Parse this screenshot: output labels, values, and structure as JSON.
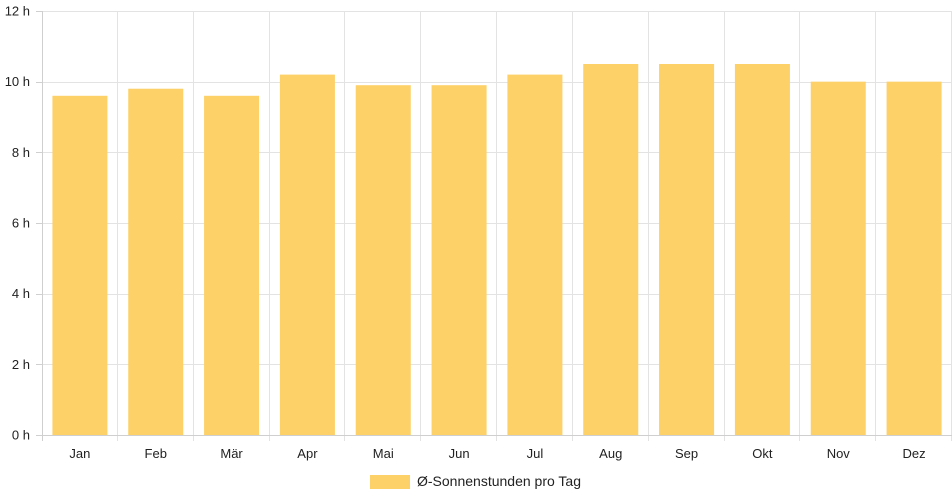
{
  "chart_data": {
    "type": "bar",
    "categories": [
      "Jan",
      "Feb",
      "Mär",
      "Apr",
      "Mai",
      "Jun",
      "Jul",
      "Aug",
      "Sep",
      "Okt",
      "Nov",
      "Dez"
    ],
    "series": [
      {
        "name": "Ø-Sonnenstunden pro Tag",
        "values": [
          9.6,
          9.8,
          9.6,
          10.2,
          9.9,
          9.9,
          10.2,
          10.5,
          10.5,
          10.5,
          10.0,
          10.0
        ],
        "color": "#fdd068"
      }
    ],
    "ylim": [
      0,
      12
    ],
    "yticks": [
      0,
      2,
      4,
      6,
      8,
      10,
      12
    ],
    "ytick_labels": [
      "0 h",
      "2 h",
      "4 h",
      "6 h",
      "8 h",
      "10 h",
      "12 h"
    ],
    "grid": true,
    "legend_position": "bottom"
  }
}
